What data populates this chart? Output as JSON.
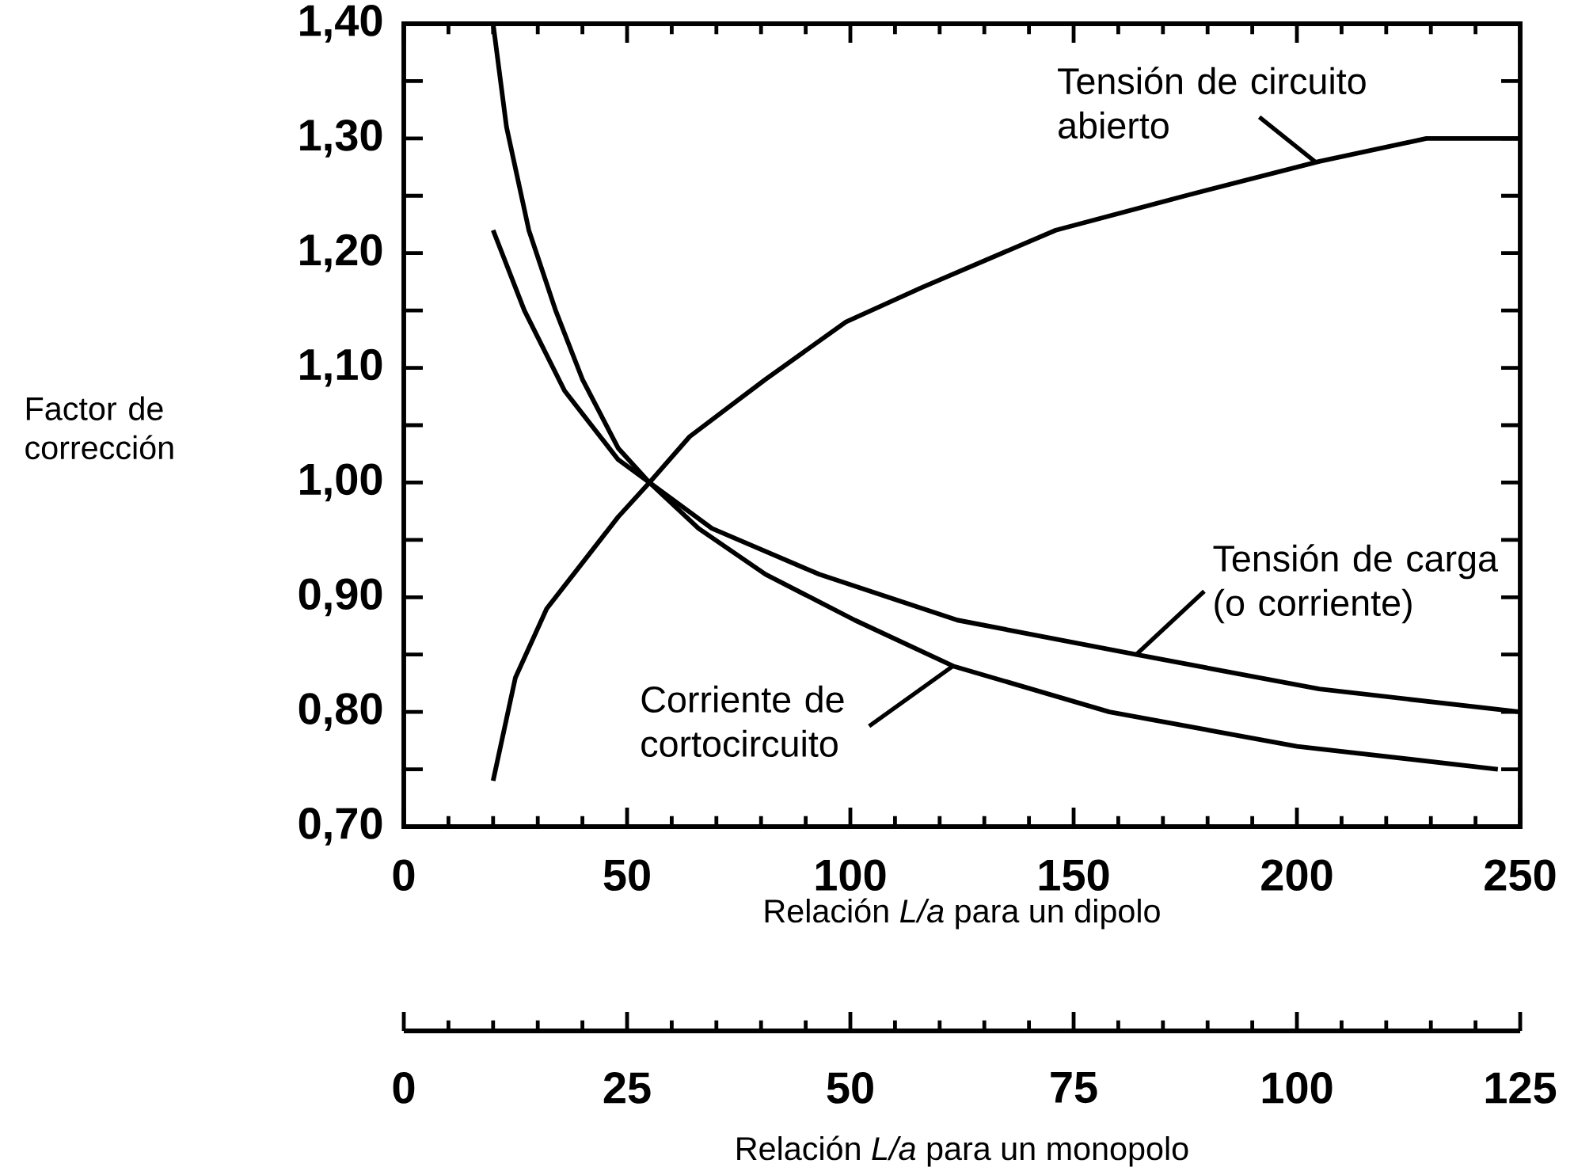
{
  "chart_data": {
    "type": "line",
    "ylabel": "Factor de corrección",
    "xlabel": "Relación *L/a* para un dipolo",
    "x2label": "Relación *L/a* para un monopolo",
    "xlim": [
      0,
      250
    ],
    "xticks": [
      0,
      50,
      100,
      150,
      200,
      250
    ],
    "x2lim": [
      0,
      125
    ],
    "x2ticks": [
      0,
      25,
      50,
      75,
      100,
      125
    ],
    "ylim": [
      0.7,
      1.4
    ],
    "yticks": [
      {
        "value": 0.7,
        "label": "0,70"
      },
      {
        "value": 0.8,
        "label": "0,80"
      },
      {
        "value": 0.9,
        "label": "0,90"
      },
      {
        "value": 1.0,
        "label": "1,00"
      },
      {
        "value": 1.1,
        "label": "1,10"
      },
      {
        "value": 1.2,
        "label": "1,20"
      },
      {
        "value": 1.3,
        "label": "1,30"
      },
      {
        "value": 1.4,
        "label": "1,40"
      }
    ],
    "series": [
      {
        "color": "#000000",
        "x": [
          20,
          23,
          28,
          34,
          40,
          48,
          55,
          66,
          81,
          101,
          123,
          158,
          200,
          245
        ],
        "values": [
          1.4,
          1.31,
          1.22,
          1.15,
          1.09,
          1.03,
          1.0,
          0.96,
          0.92,
          0.88,
          0.84,
          0.8,
          0.77,
          0.75
        ]
      },
      {
        "color": "#000000",
        "x": [
          20,
          27,
          36,
          48,
          55,
          69,
          93,
          124,
          164,
          205,
          250
        ],
        "values": [
          1.22,
          1.15,
          1.08,
          1.02,
          1.0,
          0.96,
          0.92,
          0.88,
          0.85,
          0.82,
          0.8
        ]
      },
      {
        "color": "#000000",
        "x": [
          20,
          25,
          32,
          40,
          48,
          55,
          64,
          81,
          99,
          116,
          146,
          175,
          205,
          229,
          243,
          250
        ],
        "values": [
          0.74,
          0.83,
          0.89,
          0.93,
          0.97,
          1.0,
          1.04,
          1.09,
          1.14,
          1.17,
          1.22,
          1.25,
          1.28,
          1.3,
          1.3,
          1.3
        ]
      }
    ],
    "annotations": [
      {
        "text": "Tensión de circuito abierto",
        "x": 204,
        "y": 1.28
      },
      {
        "text": "Tensión de carga (o corriente)",
        "x": 164,
        "y": 0.85
      },
      {
        "text": "Corriente de cortocircuito",
        "x": 123,
        "y": 0.84
      }
    ]
  }
}
